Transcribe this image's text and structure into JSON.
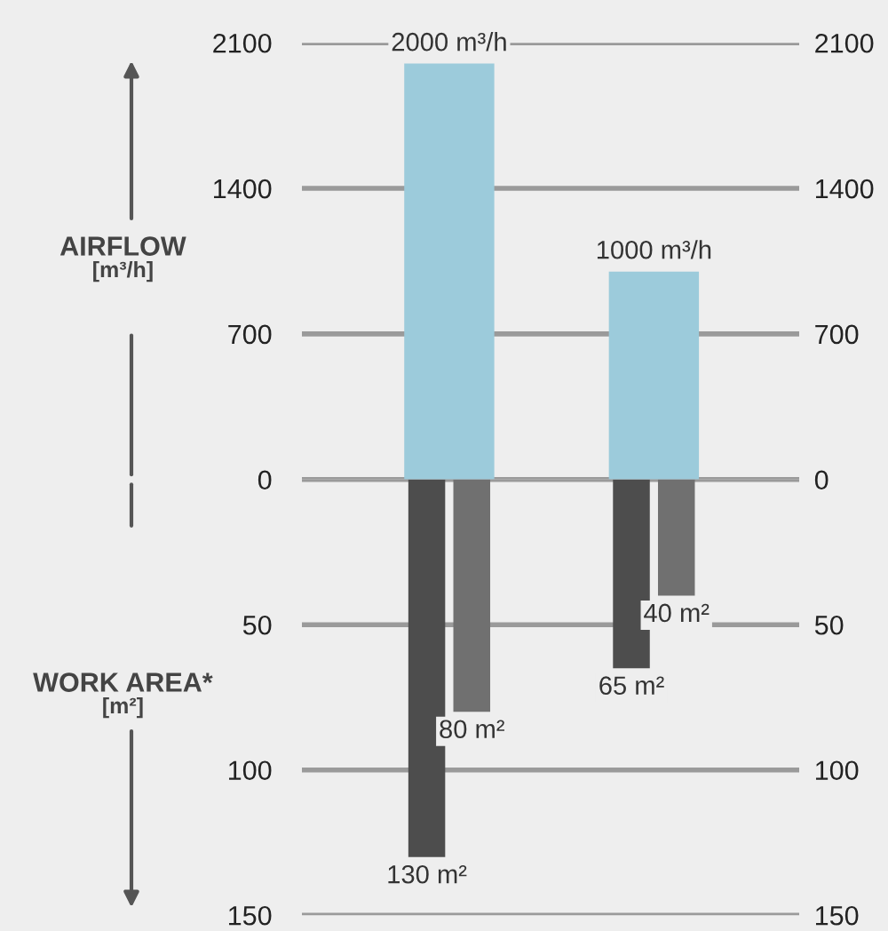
{
  "chart_data": [
    {
      "type": "bar",
      "categories": [
        null,
        null
      ],
      "ylabel": "AIRFLOW\n[m³/h]",
      "series": [
        {
          "color": "#9ccbdb",
          "values": [
            2000,
            1000
          ],
          "value_labels": [
            "2000 m³/h",
            "1000 m³/h"
          ]
        }
      ],
      "ylim": [
        0,
        2100
      ],
      "yticks": [
        0,
        700,
        1400,
        2100
      ],
      "y2lim": [
        0,
        2100
      ],
      "y2ticks": [
        0,
        700,
        1400,
        2100
      ],
      "grid": "y"
    },
    {
      "type": "bar",
      "categories": [
        null,
        null
      ],
      "ylabel": "WORK AREA*\n[m²]",
      "series": [
        {
          "color": "#4d4d4d",
          "values": [
            130,
            65
          ],
          "value_labels": [
            "130 m²",
            "65 m²"
          ]
        },
        {
          "color": "#707070",
          "values": [
            80,
            40
          ],
          "value_labels": [
            "80 m²",
            "40 m²"
          ]
        }
      ],
      "ylim": [
        150,
        0
      ],
      "yticks": [
        {
          "value": 0,
          "label": null
        },
        50,
        100,
        150
      ],
      "y2lim": [
        150,
        0
      ],
      "y2ticks": [
        {
          "value": 0,
          "label": null
        },
        50,
        100,
        150
      ],
      "grid": "y"
    }
  ]
}
